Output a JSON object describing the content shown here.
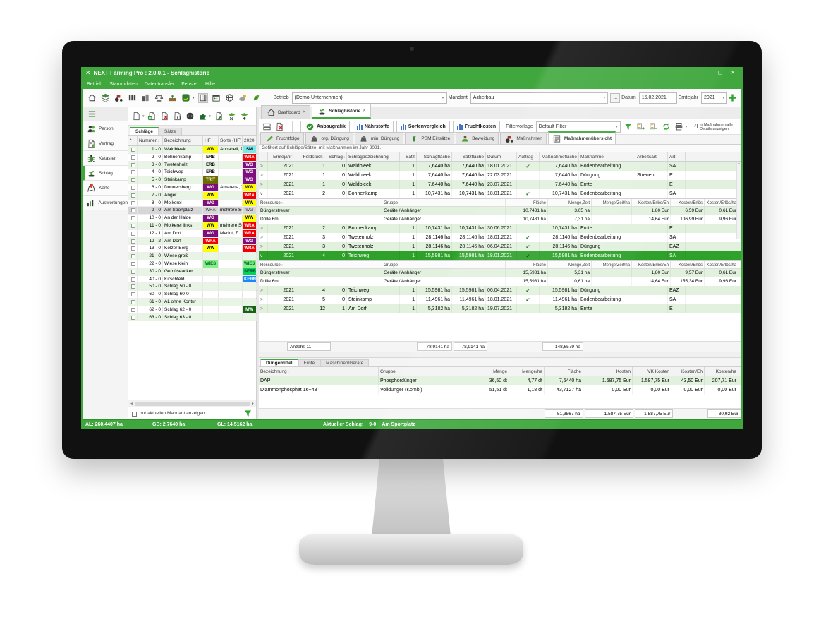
{
  "window": {
    "title": "NEXT Farming Pro : 2.0.0.1  - Schlaghistorie",
    "controls": {
      "minimize": "–",
      "maximize": "▢",
      "close": "✕"
    }
  },
  "menu": {
    "items": [
      "Betrieb",
      "Stammdaten",
      "Datentransfer",
      "Fenster",
      "Hilfe"
    ]
  },
  "topbar": {
    "icons": [
      "home",
      "layers",
      "tractor",
      "columns",
      "city",
      "scale",
      "field",
      "deere",
      "grid",
      "calendar",
      "globe",
      "weather",
      "leaf"
    ],
    "betrieb_label": "Betrieb",
    "betrieb_value": "(Demo-Unternehmen)",
    "mandant_label": "Mandant",
    "mandant_value": "Ackerbau",
    "more_button": "...",
    "datum_label": "Datum",
    "datum_value": "15.02.2021",
    "erntejahr_label": "Erntejahr",
    "erntejahr_value": "2021",
    "add_icon": "plus"
  },
  "sidebar": {
    "items": [
      {
        "label": "Person",
        "icon": "person",
        "active": false
      },
      {
        "label": "Vertrag",
        "icon": "contract",
        "active": false
      },
      {
        "label": "Kataster",
        "icon": "kataster",
        "active": false
      },
      {
        "label": "Schlag",
        "icon": "sprout",
        "active": true
      },
      {
        "label": "Karte",
        "icon": "pin",
        "active": false
      },
      {
        "label": "Auswertungen",
        "icon": "chart",
        "active": false
      }
    ]
  },
  "left_panel": {
    "toolbar_icons": [
      "doc-new",
      "doc-copy",
      "doc-delete",
      "doc-preview",
      "group",
      "puzzle",
      "note",
      "field-remove",
      "field-star"
    ],
    "tabs": [
      {
        "label": "Schläge",
        "active": true
      },
      {
        "label": "Sätze",
        "active": false
      }
    ],
    "columns": [
      "*",
      "Nummer",
      "Bezeichnung",
      "HF",
      "Sorte (HF)",
      "2020"
    ],
    "rows": [
      {
        "nummer": "1 - 0",
        "bezeichnung": "Waldbleek",
        "hf": "WW",
        "hf_c": "ww",
        "sorte": "Annabell, Z",
        "y2020": "SM",
        "y2020_c": "sm",
        "selected": false
      },
      {
        "nummer": "2 - 0",
        "bezeichnung": "Bohnenkamp",
        "hf": "ERB",
        "hf_c": "erb",
        "sorte": "",
        "y2020": "WRA",
        "y2020_c": "wra",
        "selected": false
      },
      {
        "nummer": "3 - 0",
        "bezeichnung": "Twetenholz",
        "hf": "ERB",
        "hf_c": "erb",
        "sorte": "",
        "y2020": "WG",
        "y2020_c": "wg",
        "selected": false
      },
      {
        "nummer": "4 - 0",
        "bezeichnung": "Teichweg",
        "hf": "ERB",
        "hf_c": "erb",
        "sorte": "",
        "y2020": "WG",
        "y2020_c": "wg",
        "selected": false
      },
      {
        "nummer": "5 - 0",
        "bezeichnung": "Steinkamp",
        "hf": "TRIT",
        "hf_c": "trit",
        "sorte": "",
        "y2020": "WG",
        "y2020_c": "wg",
        "selected": false
      },
      {
        "nummer": "6 - 0",
        "bezeichnung": "Donnersberg",
        "hf": "WG",
        "hf_c": "wg",
        "sorte": "Amarena, Z",
        "y2020": "WW",
        "y2020_c": "ww",
        "selected": false
      },
      {
        "nummer": "7 - 0",
        "bezeichnung": "Anger",
        "hf": "WW",
        "hf_c": "ww",
        "sorte": "",
        "y2020": "WRA",
        "y2020_c": "wra",
        "selected": false
      },
      {
        "nummer": "8 - 0",
        "bezeichnung": "Molkerei",
        "hf": "WG",
        "hf_c": "wg",
        "sorte": "",
        "y2020": "WW",
        "y2020_c": "ww",
        "selected": false
      },
      {
        "nummer": "9 - 0",
        "bezeichnung": "Am Sportplatz",
        "hf": "WRA",
        "hf_c": "plain",
        "sorte": "mehrere Sorten",
        "y2020": "WG",
        "y2020_c": "plain",
        "selected": true
      },
      {
        "nummer": "10 - 0",
        "bezeichnung": "An der Halde",
        "hf": "WG",
        "hf_c": "wg",
        "sorte": "",
        "y2020": "WW",
        "y2020_c": "ww",
        "selected": false
      },
      {
        "nummer": "11 - 0",
        "bezeichnung": "Molkerei links",
        "hf": "WW",
        "hf_c": "ww",
        "sorte": "mehrere Sorten",
        "y2020": "WRA",
        "y2020_c": "wra",
        "selected": false
      },
      {
        "nummer": "12 - 1",
        "bezeichnung": "Am Dorf",
        "hf": "WG",
        "hf_c": "wg",
        "sorte": "Merlot, Z",
        "y2020": "WRA",
        "y2020_c": "wra",
        "selected": false
      },
      {
        "nummer": "12 - 2",
        "bezeichnung": "Am Dorf",
        "hf": "WRA",
        "hf_c": "wra",
        "sorte": "",
        "y2020": "WG",
        "y2020_c": "wg",
        "selected": false
      },
      {
        "nummer": "13 - 0",
        "bezeichnung": "Kelzer Berg",
        "hf": "WW",
        "hf_c": "ww",
        "sorte": "",
        "y2020": "WRA",
        "y2020_c": "wra",
        "selected": false
      },
      {
        "nummer": "21 - 0",
        "bezeichnung": "Wiese groß",
        "hf": "",
        "hf_c": "",
        "sorte": "",
        "y2020": "",
        "y2020_c": "",
        "selected": false
      },
      {
        "nummer": "22 - 0",
        "bezeichnung": "Wiese klein",
        "hf": "WIES",
        "hf_c": "wies",
        "sorte": "",
        "y2020": "WIES",
        "y2020_c": "wies",
        "selected": false
      },
      {
        "nummer": "30 - 0",
        "bezeichnung": "Gemüseacker",
        "hf": "",
        "hf_c": "",
        "sorte": "",
        "y2020": "SERB",
        "y2020_c": "serb",
        "selected": false
      },
      {
        "nummer": "40 - 0",
        "bezeichnung": "Kirschfeld",
        "hf": "",
        "hf_c": "",
        "sorte": "",
        "y2020": "KERN",
        "y2020_c": "kern",
        "selected": false
      },
      {
        "nummer": "50 - 0",
        "bezeichnung": "Schlag 50 - 0",
        "hf": "",
        "hf_c": "",
        "sorte": "",
        "y2020": "",
        "y2020_c": "",
        "selected": false
      },
      {
        "nummer": "60 - 0",
        "bezeichnung": "Schlag 60-0",
        "hf": "",
        "hf_c": "",
        "sorte": "",
        "y2020": "",
        "y2020_c": "",
        "selected": false
      },
      {
        "nummer": "61 - 0",
        "bezeichnung": "AL ohne Kontur",
        "hf": "",
        "hf_c": "",
        "sorte": "",
        "y2020": "",
        "y2020_c": "",
        "selected": false
      },
      {
        "nummer": "62 - 0",
        "bezeichnung": "Schlag 62 - 0",
        "hf": "",
        "hf_c": "",
        "sorte": "",
        "y2020": "MW",
        "y2020_c": "mw",
        "selected": false
      },
      {
        "nummer": "63 - 0",
        "bezeichnung": "Schlag 63 - 0",
        "hf": "",
        "hf_c": "",
        "sorte": "",
        "y2020": "",
        "y2020_c": "",
        "selected": false
      }
    ],
    "footer_checkbox": "nur aktuellen Mandant anzeigen"
  },
  "main": {
    "doc_tabs": [
      {
        "label": "Dashboard",
        "icon": "home",
        "active": false
      },
      {
        "label": "Schlaghistorie",
        "icon": "sprout",
        "active": true
      }
    ],
    "toolbar_icons_left": [
      "layout",
      "doc-delete"
    ],
    "view_buttons": [
      {
        "label": "Anbaugrafik",
        "icon": "anbau"
      },
      {
        "label": "Nährstoffe",
        "icon": "bars"
      },
      {
        "label": "Sortenvergleich",
        "icon": "bars"
      },
      {
        "label": "Fruchtkosten",
        "icon": "bars"
      }
    ],
    "filtervorlage_label": "Filtervorlage",
    "filtervorlage_value": "Default Filter",
    "toolbar_icons_right": [
      "filter",
      "tree-open",
      "tree-close",
      "refresh",
      "printer"
    ],
    "details_checkbox": "in Maßnahmen alle\nDetails anzeigen",
    "details_checked": true,
    "subtabs": [
      {
        "label": "Fruchtfolge",
        "icon": "pencil",
        "active": false
      },
      {
        "label": "org. Düngung",
        "icon": "sack",
        "active": false
      },
      {
        "label": "min. Düngung",
        "icon": "sack",
        "active": false
      },
      {
        "label": "PSM Einsätze",
        "icon": "psm",
        "active": false
      },
      {
        "label": "Beweidung",
        "icon": "graze",
        "active": false
      },
      {
        "label": "Maßnahmen",
        "icon": "tractor",
        "active": false
      },
      {
        "label": "Maßnahmenübersicht",
        "icon": "list",
        "active": true
      }
    ],
    "filter_note": "Gefiltert auf Schläge/Sätze: mit Maßnahmen im Jahr 2021.",
    "table": {
      "columns": [
        "",
        "Erntejahr",
        "Feldstück",
        "Schlag",
        "Schlagbezeichnung",
        "Satz",
        "Schlagfläche",
        "Satzfläche",
        "Datum",
        "Auftrag",
        "Maßnahmefläche",
        "Maßnahme",
        "Arbeitsart",
        "Art"
      ],
      "subtable_columns": [
        "Ressource",
        "Gruppe",
        "Fläche",
        "Menge,Zeit",
        "Menge/Zeit/ha",
        "Kosten/Erlös/Eh",
        "Kosten/Erlös",
        "Kosten/Erlös/ha"
      ],
      "rows": [
        {
          "exp": ">",
          "jahr": "2021",
          "fs": "1",
          "schlag": "0",
          "bez": "Waldbleek",
          "satz": "1",
          "sfl": "7,6440 ha",
          "szfl": "7,6440 ha",
          "datum": "18.01.2021",
          "auftrag": true,
          "mfl": "7,6440 ha",
          "massnahme": "Bodenbearbeitung",
          "arbeitsart": "",
          "art": "SA",
          "selected": false
        },
        {
          "exp": ">",
          "jahr": "2021",
          "fs": "1",
          "schlag": "0",
          "bez": "Waldbleek",
          "satz": "1",
          "sfl": "7,6440 ha",
          "szfl": "7,6440 ha",
          "datum": "22.03.2021",
          "auftrag": false,
          "mfl": "7,6440 ha",
          "massnahme": "Düngung",
          "arbeitsart": "Streuen",
          "art": "E",
          "selected": false
        },
        {
          "exp": ">",
          "jahr": "2021",
          "fs": "1",
          "schlag": "0",
          "bez": "Waldbleek",
          "satz": "1",
          "sfl": "7,6440 ha",
          "szfl": "7,6440 ha",
          "datum": "23.07.2021",
          "auftrag": false,
          "mfl": "7,6440 ha",
          "massnahme": "Ernte",
          "arbeitsart": "",
          "art": "E",
          "selected": false
        },
        {
          "exp": "v",
          "jahr": "2021",
          "fs": "2",
          "schlag": "0",
          "bez": "Bohnenkamp",
          "satz": "1",
          "sfl": "10,7431 ha",
          "szfl": "10,7431 ha",
          "datum": "18.01.2021",
          "auftrag": true,
          "mfl": "10,7431 ha",
          "massnahme": "Bodenbearbeitung",
          "arbeitsart": "",
          "art": "SA",
          "selected": false,
          "children": [
            {
              "ressource": "Düngerstreuer",
              "gruppe": "Geräte / Anhänger",
              "flaeche": "10,7431 ha",
              "menge_zeit": "3,65 ha",
              "menge_zeit_ha": "",
              "kosten_eh": "1,80 Eur",
              "kosten": "6,59 Eur",
              "kosten_ha": "0,61 Eur"
            },
            {
              "ressource": "Drille 6m",
              "gruppe": "Geräte / Anhänger",
              "flaeche": "10,7431 ha",
              "menge_zeit": "7,31 ha",
              "menge_zeit_ha": "",
              "kosten_eh": "14,64 Eur",
              "kosten": "106,99 Eur",
              "kosten_ha": "9,96 Eur"
            }
          ]
        },
        {
          "exp": ">",
          "jahr": "2021",
          "fs": "2",
          "schlag": "0",
          "bez": "Bohnenkamp",
          "satz": "1",
          "sfl": "10,7431 ha",
          "szfl": "10,7431 ha",
          "datum": "30.06.2021",
          "auftrag": false,
          "mfl": "10,7431 ha",
          "massnahme": "Ernte",
          "arbeitsart": "",
          "art": "E",
          "selected": false
        },
        {
          "exp": ">",
          "jahr": "2021",
          "fs": "3",
          "schlag": "0",
          "bez": "Twetenholz",
          "satz": "1",
          "sfl": "28,1146 ha",
          "szfl": "28,1146 ha",
          "datum": "18.01.2021",
          "auftrag": true,
          "mfl": "28,1146 ha",
          "massnahme": "Bodenbearbeitung",
          "arbeitsart": "",
          "art": "SA",
          "selected": false
        },
        {
          "exp": ">",
          "jahr": "2021",
          "fs": "3",
          "schlag": "0",
          "bez": "Twetenholz",
          "satz": "1",
          "sfl": "28,1146 ha",
          "szfl": "28,1146 ha",
          "datum": "06.04.2021",
          "auftrag": true,
          "mfl": "28,1146 ha",
          "massnahme": "Düngung",
          "arbeitsart": "",
          "art": "EAZ",
          "selected": false
        },
        {
          "exp": "v",
          "jahr": "2021",
          "fs": "4",
          "schlag": "0",
          "bez": "Teichweg",
          "satz": "1",
          "sfl": "15,5981 ha",
          "szfl": "15,5981 ha",
          "datum": "18.01.2021",
          "auftrag": true,
          "mfl": "15,5981 ha",
          "massnahme": "Bodenbearbeitung",
          "arbeitsart": "",
          "art": "SA",
          "selected": true,
          "children": [
            {
              "ressource": "Düngerstreuer",
              "gruppe": "Geräte / Anhänger",
              "flaeche": "15,5981 ha",
              "menge_zeit": "5,31 ha",
              "menge_zeit_ha": "",
              "kosten_eh": "1,80 Eur",
              "kosten": "9,57 Eur",
              "kosten_ha": "0,61 Eur"
            },
            {
              "ressource": "Drille 6m",
              "gruppe": "Geräte / Anhänger",
              "flaeche": "15,5981 ha",
              "menge_zeit": "10,61 ha",
              "menge_zeit_ha": "",
              "kosten_eh": "14,64 Eur",
              "kosten": "155,34 Eur",
              "kosten_ha": "9,96 Eur"
            }
          ]
        },
        {
          "exp": ">",
          "jahr": "2021",
          "fs": "4",
          "schlag": "0",
          "bez": "Teichweg",
          "satz": "1",
          "sfl": "15,5981 ha",
          "szfl": "15,5981 ha",
          "datum": "06.04.2021",
          "auftrag": true,
          "mfl": "15,5981 ha",
          "massnahme": "Düngung",
          "arbeitsart": "",
          "art": "EAZ",
          "selected": false
        },
        {
          "exp": ">",
          "jahr": "2021",
          "fs": "5",
          "schlag": "0",
          "bez": "Steinkamp",
          "satz": "1",
          "sfl": "11,4961 ha",
          "szfl": "11,4961 ha",
          "datum": "18.01.2021",
          "auftrag": true,
          "mfl": "11,4961 ha",
          "massnahme": "Bodenbearbeitung",
          "arbeitsart": "",
          "art": "SA",
          "selected": false
        },
        {
          "exp": ">",
          "jahr": "2021",
          "fs": "12",
          "schlag": "1",
          "bez": "Am Dorf",
          "satz": "1",
          "sfl": "5,3182 ha",
          "szfl": "5,3182 ha",
          "datum": "19.07.2021",
          "auftrag": false,
          "mfl": "5,3182 ha",
          "massnahme": "Ernte",
          "arbeitsart": "",
          "art": "E",
          "selected": false
        }
      ],
      "summary": {
        "anzahl": "Anzahl: 11",
        "schlagflaeche": "78,9141 ha",
        "satzflaeche": "78,9141 ha",
        "massnahmeflaeche": "148,6579 ha"
      }
    },
    "splitter_dots": "···",
    "bottom": {
      "tabs": [
        {
          "label": "Düngemittel",
          "active": true
        },
        {
          "label": "Ernte",
          "active": false
        },
        {
          "label": "Maschinen/Geräte",
          "active": false
        }
      ],
      "columns": [
        "Bezeichnung",
        "Gruppe",
        "Menge",
        "Menge/ha",
        "Fläche",
        "Kosten",
        "VK Kosten",
        "Kosten/Eh",
        "Kosten/ha"
      ],
      "rows": [
        [
          "DAP",
          "Phosphordünger",
          "36,50 dt",
          "4,77 dt",
          "7,6440 ha",
          "1.587,75 Eur",
          "1.587,75 Eur",
          "43,50 Eur",
          "207,71 Eur"
        ],
        [
          "Diammonphosphat 16+48",
          "Volldünger (Kombi)",
          "51,51 dt",
          "1,18 dt",
          "43,7127 ha",
          "0,00 Eur",
          "0,00 Eur",
          "0,00 Eur",
          "0,00 Eur"
        ]
      ],
      "summary": {
        "flaeche": "51,3567 ha",
        "kosten": "1.587,75 Eur",
        "vk_kosten": "1.587,75 Eur",
        "kosten_ha": "30,92 Eur"
      }
    }
  },
  "statusbar": {
    "al": "AL: 260,4407 ha",
    "gb": "GB: 2,7640 ha",
    "gl": "GL: 14,5162 ha",
    "aktueller_label": "Aktueller Schlag:",
    "schlag_nr": "9-0",
    "schlag_name": "Am Sportplatz"
  },
  "colors": {
    "brand_green": "#3fa73d",
    "row_green": "#e2f1de",
    "selected_green": "#2ea12b"
  }
}
